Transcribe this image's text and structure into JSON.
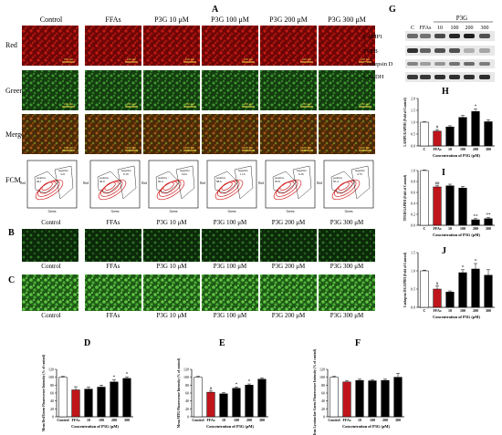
{
  "panel_letters": {
    "A": "A",
    "B": "B",
    "C": "C",
    "D": "D",
    "E": "E",
    "F": "F",
    "G": "G",
    "H": "H",
    "I": "I",
    "J": "J"
  },
  "top_labels": [
    "Control",
    "FFAs",
    "P3G 10 μM",
    "P3G 100 μM",
    "P3G 200 μM",
    "P3G 300 μM"
  ],
  "bottom_labels": [
    "Control",
    "FFAs",
    "P3G 10 μM",
    "P3G 100 μM",
    "P3G 200 μM",
    "P3G 300 μM"
  ],
  "row_labels": {
    "red": "Red",
    "green": "Green",
    "merge": "Merge",
    "fcm": "FCM"
  },
  "scale_bar": "100 μm",
  "fcm": {
    "axis_y": "Red",
    "axis_x": "Green",
    "gates": [
      "positive",
      "negative"
    ],
    "plots": [
      {
        "pos": "66.1",
        "neg": "3.21"
      },
      {
        "pos": "90.9",
        "neg": "9.19"
      },
      {
        "pos": "90.4",
        "neg": "9.64"
      },
      {
        "pos": "88.6",
        "neg": "11.6"
      },
      {
        "pos": "93.8",
        "neg": "6.39"
      },
      {
        "pos": "95.4",
        "neg": "4.79"
      }
    ]
  },
  "western": {
    "header": "P3G",
    "lanes": [
      "C",
      "FFAs",
      "10",
      "100",
      "200",
      "300"
    ],
    "proteins": [
      "LAMP1",
      "TFEB",
      "Cathepsin D",
      "GAPDH"
    ]
  },
  "colors": {
    "ffas": "#c0151b",
    "bar": "#000000",
    "control": "#ffffff",
    "red_cells": "#8b0c0c",
    "green_cells": "#2f8a25"
  },
  "chart_data": [
    {
      "id": "H",
      "type": "bar",
      "categories": [
        "C",
        "FFAs",
        "10",
        "100",
        "200",
        "300"
      ],
      "values": [
        1.0,
        0.62,
        0.8,
        1.2,
        1.45,
        1.02
      ],
      "errors": [
        0.02,
        0.05,
        0.05,
        0.08,
        0.1,
        0.08
      ],
      "annotations": [
        "",
        "#",
        "",
        "",
        "*",
        ""
      ],
      "ylabel": "LAMP1/GAPDH (Fold of Control)",
      "xlabel": "Concentration of P3G (μM)",
      "ylim": [
        0,
        2
      ],
      "yticks": [
        "0.0",
        "0.5",
        "1.0",
        "1.5",
        "2.0"
      ]
    },
    {
      "id": "I",
      "type": "bar",
      "categories": [
        "C",
        "FFAs",
        "10",
        "100",
        "200",
        "300"
      ],
      "values": [
        1.0,
        0.7,
        0.72,
        0.68,
        0.1,
        0.12
      ],
      "errors": [
        0.01,
        0.02,
        0.03,
        0.03,
        0.02,
        0.02
      ],
      "annotations": [
        "",
        "##",
        "",
        "",
        "**",
        "**"
      ],
      "ylabel": "TFEB/GAPDH (Fold of Control)",
      "xlabel": "Concentration of P3G (μM)",
      "ylim": [
        0,
        1
      ],
      "yticks": [
        "0.0",
        "0.2",
        "0.4",
        "0.6",
        "0.8",
        "1.0"
      ]
    },
    {
      "id": "J",
      "type": "bar",
      "categories": [
        "C",
        "FFAs",
        "10",
        "100",
        "200",
        "300"
      ],
      "values": [
        1.0,
        0.5,
        0.42,
        0.95,
        1.05,
        0.88
      ],
      "errors": [
        0.02,
        0.08,
        0.03,
        0.08,
        0.15,
        0.15
      ],
      "annotations": [
        "",
        "#",
        "",
        "*",
        "*",
        ""
      ],
      "ylabel": "Cathepsin D/GAPDH (Fold of Control)",
      "xlabel": "Concentration of P3G (μM)",
      "ylim": [
        0,
        1.5
      ],
      "yticks": [
        "0.0",
        "0.5",
        "1.0",
        "1.5"
      ]
    },
    {
      "id": "D",
      "type": "bar",
      "categories": [
        "Control",
        "FFAs",
        "10",
        "100",
        "200",
        "300"
      ],
      "values": [
        100,
        68,
        70,
        75,
        88,
        97
      ],
      "errors": [
        2,
        8,
        5,
        5,
        6,
        4
      ],
      "annotations": [
        "",
        "",
        "",
        "",
        "*",
        "*"
      ],
      "ylabel": "Mean Red/Green Fluorescence Intensity (% of control)",
      "xlabel": "Concentration of P3G (μM)",
      "ylim": [
        0,
        120
      ],
      "yticks": [
        "0",
        "20",
        "40",
        "60",
        "80",
        "100",
        "120"
      ]
    },
    {
      "id": "E",
      "type": "bar",
      "categories": [
        "Control",
        "FFAs",
        "10",
        "100",
        "200",
        "300"
      ],
      "values": [
        100,
        62,
        58,
        72,
        80,
        95
      ],
      "errors": [
        2,
        3,
        3,
        3,
        3,
        3
      ],
      "annotations": [
        "",
        "#",
        "",
        "*",
        "*",
        ""
      ],
      "ylabel": "Mean MTG Fluorescence Intensity (% of control)",
      "xlabel": "Concentration of P3G (μM)",
      "ylim": [
        0,
        120
      ],
      "yticks": [
        "0",
        "20",
        "40",
        "60",
        "80",
        "100",
        "120"
      ]
    },
    {
      "id": "F",
      "type": "bar",
      "categories": [
        "Control",
        "FFAs",
        "10",
        "100",
        "200",
        "300"
      ],
      "values": [
        100,
        88,
        92,
        91,
        92,
        100
      ],
      "errors": [
        2,
        3,
        3,
        2,
        3,
        10
      ],
      "annotations": [
        "",
        "",
        "",
        "",
        "",
        ""
      ],
      "ylabel": "Mean Lysotracker Green Fluorescence Intensity (% of control)",
      "xlabel": "Concentration of P3G (μM)",
      "ylim": [
        0,
        120
      ],
      "yticks": [
        "0",
        "20",
        "40",
        "60",
        "80",
        "100",
        "120"
      ]
    }
  ]
}
